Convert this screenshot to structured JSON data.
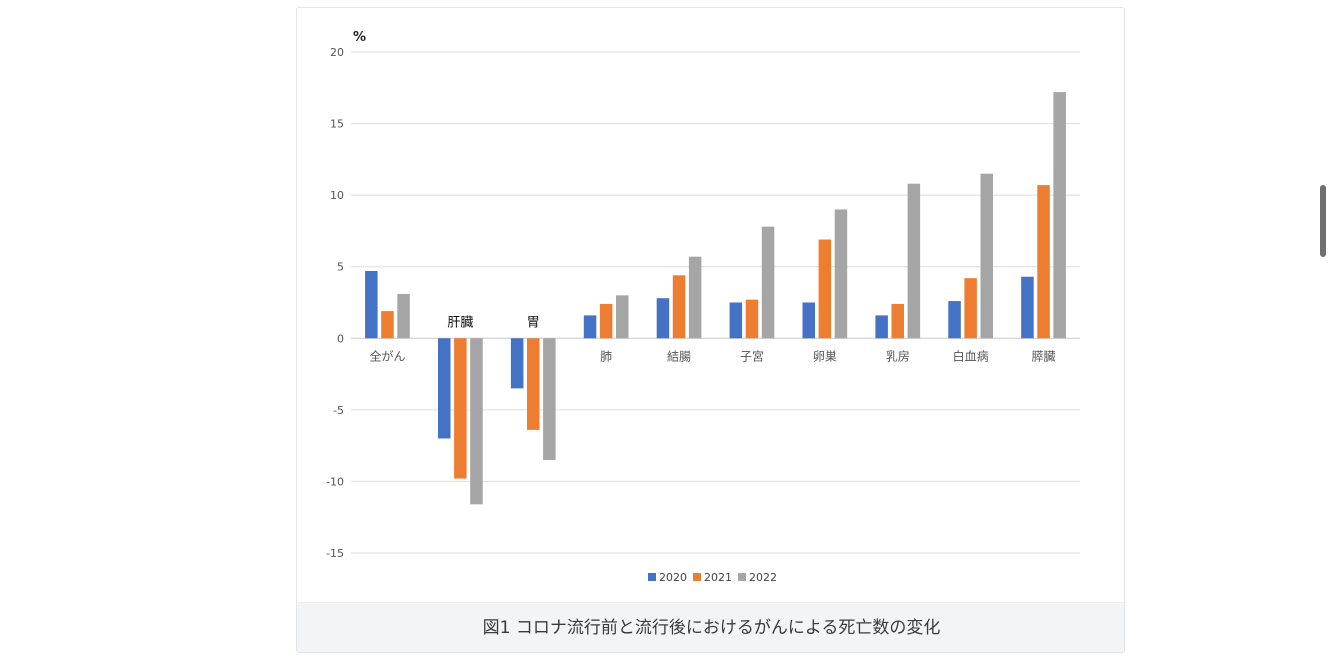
{
  "chart_data": {
    "type": "bar",
    "title": "",
    "ylabel": "%",
    "xlabel": "",
    "ylim": [
      -15,
      20
    ],
    "yticks": [
      20,
      15,
      10,
      5,
      0,
      -5,
      -10,
      -15
    ],
    "grid": true,
    "legend_position": "bottom",
    "categories": [
      "全がん",
      "肝臓",
      "胃",
      "肺",
      "結腸",
      "子宮",
      "卵巣",
      "乳房",
      "白血病",
      "膵臓"
    ],
    "series": [
      {
        "name": "2020",
        "color": "#4472c4",
        "values": [
          4.7,
          -7.0,
          -3.5,
          1.6,
          2.8,
          2.5,
          2.5,
          1.6,
          2.6,
          4.3
        ]
      },
      {
        "name": "2021",
        "color": "#ed7d31",
        "values": [
          1.9,
          -9.8,
          -6.4,
          2.4,
          4.4,
          2.7,
          6.9,
          2.4,
          4.2,
          10.7
        ]
      },
      {
        "name": "2022",
        "color": "#a5a5a5",
        "values": [
          3.1,
          -11.6,
          -8.5,
          3.0,
          5.7,
          7.8,
          9.0,
          10.8,
          11.5,
          17.2
        ]
      }
    ]
  },
  "caption": "図1 コロナ流行前と流行後におけるがんによる死亡数の変化"
}
